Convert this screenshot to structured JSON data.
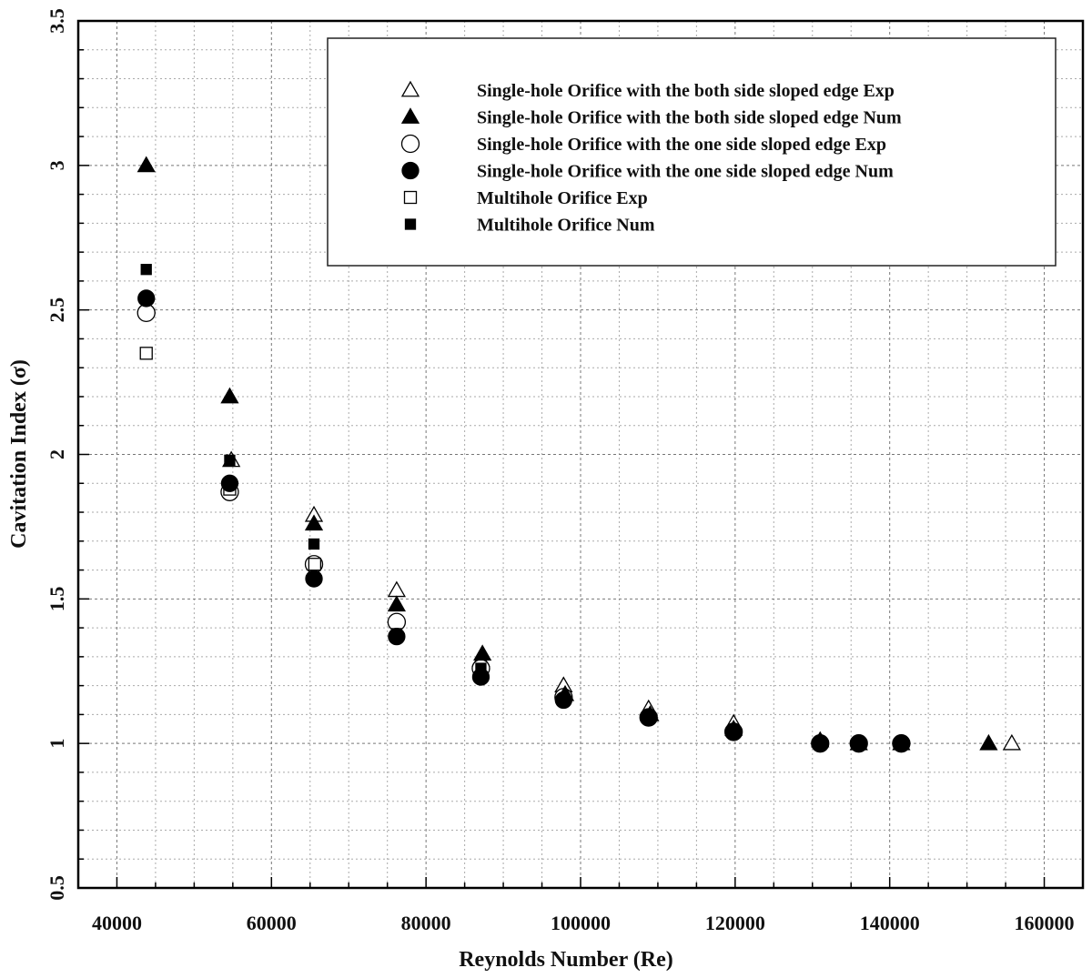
{
  "chart_data": {
    "type": "scatter",
    "title": "",
    "xlabel": "Reynolds Number (Re)",
    "ylabel": "Cavitation Index (σ)",
    "xlim": [
      35000,
      165000
    ],
    "ylim": [
      0.5,
      3.5
    ],
    "x_ticks": [
      40000,
      60000,
      80000,
      100000,
      120000,
      140000,
      160000
    ],
    "y_ticks": [
      0.5,
      1,
      1.5,
      2,
      2.5,
      3,
      3.5
    ],
    "x_tick_labels": [
      "40000",
      "60000",
      "80000",
      "100000",
      "120000",
      "140000",
      "160000"
    ],
    "y_tick_labels": [
      "0.5",
      "1",
      "1.5",
      "2",
      "2.5",
      "3",
      "3.5"
    ],
    "grid": true,
    "legend_position": "top-right",
    "series": [
      {
        "name": "Single-hole Orifice with the both side sloped edge Exp",
        "marker": "triangle-open",
        "x": [
          54800,
          65500,
          76200,
          87100,
          97800,
          108800,
          119800,
          155800
        ],
        "y": [
          1.98,
          1.79,
          1.53,
          1.29,
          1.2,
          1.12,
          1.07,
          1.0
        ]
      },
      {
        "name": "Single-hole Orifice with the both side sloped edge Num",
        "marker": "triangle-filled",
        "x": [
          43800,
          54600,
          65500,
          76200,
          87300,
          98000,
          109000,
          119800,
          131000,
          136000,
          141500,
          152800
        ],
        "y": [
          3.0,
          2.2,
          1.76,
          1.48,
          1.31,
          1.17,
          1.1,
          1.05,
          1.01,
          1.0,
          1.0,
          1.0
        ]
      },
      {
        "name": "Single-hole Orifice with the one side sloped edge Exp",
        "marker": "circle-open",
        "x": [
          43800,
          54600,
          65500,
          76200,
          87100,
          97800,
          108800,
          119800,
          131000,
          136000,
          141500
        ],
        "y": [
          2.49,
          1.87,
          1.62,
          1.42,
          1.26,
          1.16,
          1.09,
          1.04,
          1.0,
          1.0,
          1.0
        ]
      },
      {
        "name": "Single-hole Orifice with the one side sloped edge  Num",
        "marker": "circle-filled",
        "x": [
          43800,
          54600,
          65500,
          76200,
          87100,
          97800,
          108800,
          119800,
          131000,
          136000,
          141500
        ],
        "y": [
          2.54,
          1.9,
          1.57,
          1.37,
          1.23,
          1.15,
          1.09,
          1.04,
          1.0,
          1.0,
          1.0
        ]
      },
      {
        "name": "Multihole Orifice Exp",
        "marker": "square-open",
        "x": [
          43800,
          54600,
          65600
        ],
        "y": [
          2.35,
          1.88,
          1.62
        ]
      },
      {
        "name": "Multihole Orifice Num",
        "marker": "square-filled",
        "x": [
          43800,
          54600,
          65500,
          76200,
          87100
        ],
        "y": [
          2.64,
          1.98,
          1.69,
          1.38,
          1.26
        ]
      }
    ]
  }
}
